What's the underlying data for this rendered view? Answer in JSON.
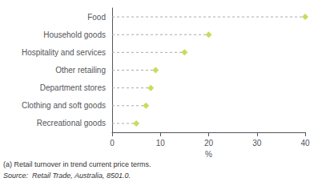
{
  "chart_data": {
    "type": "dot",
    "orientation": "horizontal",
    "categories": [
      "Food",
      "Household goods",
      "Hospitality and services",
      "Other retailing",
      "Department stores",
      "Clothing and soft goods",
      "Recreational goods"
    ],
    "values": [
      40,
      20,
      15,
      9,
      8,
      7,
      5
    ],
    "xlim": [
      0,
      40
    ],
    "xticks": [
      0,
      10,
      20,
      30,
      40
    ],
    "xlabel": "%",
    "annotations": [
      "(a) Retail turnover in trend current price terms.",
      "Source:  Retail Trade, Australia, 8501.0."
    ],
    "marker": "diamond",
    "line_style": "dashed",
    "grid": false
  }
}
